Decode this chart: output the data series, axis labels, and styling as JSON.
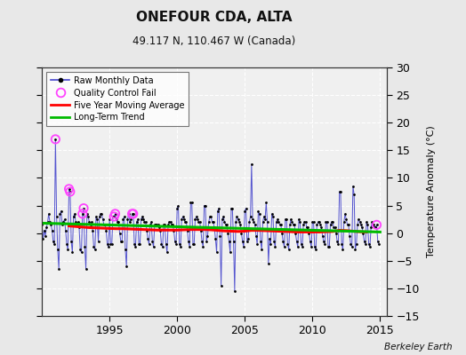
{
  "title": "ONEFOUR CDA, ALTA",
  "subtitle": "49.117 N, 110.467 W (Canada)",
  "ylabel": "Temperature Anomaly (°C)",
  "watermark": "Berkeley Earth",
  "xlim": [
    1990.0,
    2015.5
  ],
  "ylim": [
    -15,
    30
  ],
  "yticks": [
    -15,
    -10,
    -5,
    0,
    5,
    10,
    15,
    20,
    25,
    30
  ],
  "xticks": [
    1995,
    2000,
    2005,
    2010,
    2015
  ],
  "bg_color": "#e8e8e8",
  "plot_bg_color": "#f0f0f0",
  "grid_color": "#ffffff",
  "line_color": "#4444cc",
  "dot_color": "#000000",
  "ma_color": "#ff0000",
  "trend_color": "#00bb00",
  "qc_color": "#ff44ff",
  "raw_data": [
    [
      1990.0,
      1.5
    ],
    [
      1990.083,
      -1.0
    ],
    [
      1990.167,
      0.5
    ],
    [
      1990.25,
      -0.5
    ],
    [
      1990.333,
      1.0
    ],
    [
      1990.417,
      2.0
    ],
    [
      1990.5,
      3.5
    ],
    [
      1990.583,
      2.0
    ],
    [
      1990.667,
      1.5
    ],
    [
      1990.75,
      0.5
    ],
    [
      1990.833,
      -1.5
    ],
    [
      1990.917,
      -2.0
    ],
    [
      1991.0,
      17.0
    ],
    [
      1991.083,
      3.0
    ],
    [
      1991.167,
      -3.0
    ],
    [
      1991.25,
      -6.5
    ],
    [
      1991.333,
      3.5
    ],
    [
      1991.417,
      4.0
    ],
    [
      1991.5,
      1.5
    ],
    [
      1991.583,
      2.0
    ],
    [
      1991.667,
      2.5
    ],
    [
      1991.75,
      0.5
    ],
    [
      1991.833,
      -2.0
    ],
    [
      1991.917,
      -3.0
    ],
    [
      1992.0,
      8.0
    ],
    [
      1992.083,
      7.5
    ],
    [
      1992.167,
      -1.5
    ],
    [
      1992.25,
      -3.5
    ],
    [
      1992.333,
      3.0
    ],
    [
      1992.417,
      3.5
    ],
    [
      1992.5,
      2.0
    ],
    [
      1992.583,
      1.5
    ],
    [
      1992.667,
      2.0
    ],
    [
      1992.75,
      1.0
    ],
    [
      1992.833,
      -3.0
    ],
    [
      1992.917,
      -3.5
    ],
    [
      1993.0,
      3.5
    ],
    [
      1993.083,
      4.5
    ],
    [
      1993.167,
      -2.5
    ],
    [
      1993.25,
      -6.5
    ],
    [
      1993.333,
      3.5
    ],
    [
      1993.417,
      3.0
    ],
    [
      1993.5,
      2.0
    ],
    [
      1993.583,
      1.5
    ],
    [
      1993.667,
      2.0
    ],
    [
      1993.75,
      0.5
    ],
    [
      1993.833,
      -2.5
    ],
    [
      1993.917,
      -3.0
    ],
    [
      1994.0,
      3.0
    ],
    [
      1994.083,
      2.5
    ],
    [
      1994.167,
      -1.5
    ],
    [
      1994.25,
      3.0
    ],
    [
      1994.333,
      3.5
    ],
    [
      1994.417,
      3.5
    ],
    [
      1994.5,
      2.5
    ],
    [
      1994.583,
      1.5
    ],
    [
      1994.667,
      1.5
    ],
    [
      1994.75,
      0.5
    ],
    [
      1994.833,
      -2.0
    ],
    [
      1994.917,
      -2.5
    ],
    [
      1995.0,
      2.5
    ],
    [
      1995.083,
      -2.0
    ],
    [
      1995.167,
      -2.0
    ],
    [
      1995.25,
      3.0
    ],
    [
      1995.333,
      3.0
    ],
    [
      1995.417,
      3.5
    ],
    [
      1995.5,
      2.5
    ],
    [
      1995.583,
      2.0
    ],
    [
      1995.667,
      2.0
    ],
    [
      1995.75,
      0.0
    ],
    [
      1995.833,
      -1.5
    ],
    [
      1995.917,
      -1.5
    ],
    [
      1996.0,
      2.5
    ],
    [
      1996.083,
      3.0
    ],
    [
      1996.167,
      -3.0
    ],
    [
      1996.25,
      -6.0
    ],
    [
      1996.333,
      2.5
    ],
    [
      1996.417,
      3.5
    ],
    [
      1996.5,
      2.0
    ],
    [
      1996.583,
      2.5
    ],
    [
      1996.667,
      3.5
    ],
    [
      1996.75,
      3.5
    ],
    [
      1996.833,
      -2.0
    ],
    [
      1996.917,
      -2.5
    ],
    [
      1997.0,
      2.0
    ],
    [
      1997.083,
      2.5
    ],
    [
      1997.167,
      -2.0
    ],
    [
      1997.25,
      -2.0
    ],
    [
      1997.333,
      2.5
    ],
    [
      1997.417,
      3.0
    ],
    [
      1997.5,
      2.5
    ],
    [
      1997.583,
      2.0
    ],
    [
      1997.667,
      2.0
    ],
    [
      1997.75,
      0.5
    ],
    [
      1997.833,
      -1.0
    ],
    [
      1997.917,
      -2.0
    ],
    [
      1998.0,
      1.5
    ],
    [
      1998.083,
      2.0
    ],
    [
      1998.167,
      -1.5
    ],
    [
      1998.25,
      -2.5
    ],
    [
      1998.333,
      1.5
    ],
    [
      1998.417,
      1.5
    ],
    [
      1998.5,
      1.5
    ],
    [
      1998.583,
      1.5
    ],
    [
      1998.667,
      1.0
    ],
    [
      1998.75,
      0.5
    ],
    [
      1998.833,
      -2.0
    ],
    [
      1998.917,
      -2.5
    ],
    [
      1999.0,
      1.5
    ],
    [
      1999.083,
      1.5
    ],
    [
      1999.167,
      -2.0
    ],
    [
      1999.25,
      -3.5
    ],
    [
      1999.333,
      1.5
    ],
    [
      1999.417,
      2.0
    ],
    [
      1999.5,
      2.0
    ],
    [
      1999.583,
      1.5
    ],
    [
      1999.667,
      1.5
    ],
    [
      1999.75,
      0.5
    ],
    [
      1999.833,
      -1.5
    ],
    [
      1999.917,
      -2.0
    ],
    [
      2000.0,
      4.5
    ],
    [
      2000.083,
      5.0
    ],
    [
      2000.167,
      -2.0
    ],
    [
      2000.25,
      -2.5
    ],
    [
      2000.333,
      2.5
    ],
    [
      2000.417,
      3.0
    ],
    [
      2000.5,
      2.5
    ],
    [
      2000.583,
      2.0
    ],
    [
      2000.667,
      2.0
    ],
    [
      2000.75,
      0.5
    ],
    [
      2000.833,
      -1.5
    ],
    [
      2000.917,
      -2.5
    ],
    [
      2001.0,
      5.5
    ],
    [
      2001.083,
      5.5
    ],
    [
      2001.167,
      -2.0
    ],
    [
      2001.25,
      -2.0
    ],
    [
      2001.333,
      2.5
    ],
    [
      2001.417,
      3.0
    ],
    [
      2001.5,
      2.5
    ],
    [
      2001.583,
      2.0
    ],
    [
      2001.667,
      2.0
    ],
    [
      2001.75,
      0.5
    ],
    [
      2001.833,
      -1.5
    ],
    [
      2001.917,
      -2.5
    ],
    [
      2002.0,
      5.0
    ],
    [
      2002.083,
      5.0
    ],
    [
      2002.167,
      -1.5
    ],
    [
      2002.25,
      -0.5
    ],
    [
      2002.333,
      2.0
    ],
    [
      2002.417,
      3.0
    ],
    [
      2002.5,
      3.0
    ],
    [
      2002.583,
      2.0
    ],
    [
      2002.667,
      2.0
    ],
    [
      2002.75,
      1.0
    ],
    [
      2002.833,
      -1.0
    ],
    [
      2002.917,
      -3.5
    ],
    [
      2003.0,
      4.0
    ],
    [
      2003.083,
      4.5
    ],
    [
      2003.167,
      -0.5
    ],
    [
      2003.25,
      -9.5
    ],
    [
      2003.333,
      2.5
    ],
    [
      2003.417,
      3.0
    ],
    [
      2003.5,
      2.0
    ],
    [
      2003.583,
      1.5
    ],
    [
      2003.667,
      1.5
    ],
    [
      2003.75,
      0.0
    ],
    [
      2003.833,
      -1.5
    ],
    [
      2003.917,
      -3.5
    ],
    [
      2004.0,
      4.5
    ],
    [
      2004.083,
      4.5
    ],
    [
      2004.167,
      -1.5
    ],
    [
      2004.25,
      -10.5
    ],
    [
      2004.333,
      2.0
    ],
    [
      2004.417,
      3.0
    ],
    [
      2004.5,
      2.5
    ],
    [
      2004.583,
      2.0
    ],
    [
      2004.667,
      1.5
    ],
    [
      2004.75,
      0.0
    ],
    [
      2004.833,
      -1.5
    ],
    [
      2004.917,
      -2.5
    ],
    [
      2005.0,
      4.0
    ],
    [
      2005.083,
      4.5
    ],
    [
      2005.167,
      -1.5
    ],
    [
      2005.25,
      -1.0
    ],
    [
      2005.333,
      2.0
    ],
    [
      2005.417,
      3.0
    ],
    [
      2005.5,
      12.5
    ],
    [
      2005.583,
      2.5
    ],
    [
      2005.667,
      2.0
    ],
    [
      2005.75,
      1.5
    ],
    [
      2005.833,
      -0.5
    ],
    [
      2005.917,
      -2.0
    ],
    [
      2006.0,
      4.0
    ],
    [
      2006.083,
      3.5
    ],
    [
      2006.167,
      -1.5
    ],
    [
      2006.25,
      -3.0
    ],
    [
      2006.333,
      2.0
    ],
    [
      2006.417,
      3.0
    ],
    [
      2006.5,
      2.5
    ],
    [
      2006.583,
      5.5
    ],
    [
      2006.667,
      2.0
    ],
    [
      2006.75,
      -5.5
    ],
    [
      2006.833,
      -1.0
    ],
    [
      2006.917,
      -2.0
    ],
    [
      2007.0,
      3.5
    ],
    [
      2007.083,
      3.0
    ],
    [
      2007.167,
      -1.5
    ],
    [
      2007.25,
      -2.5
    ],
    [
      2007.333,
      2.0
    ],
    [
      2007.417,
      2.5
    ],
    [
      2007.5,
      2.0
    ],
    [
      2007.583,
      1.5
    ],
    [
      2007.667,
      1.5
    ],
    [
      2007.75,
      0.0
    ],
    [
      2007.833,
      -1.5
    ],
    [
      2007.917,
      -2.5
    ],
    [
      2008.0,
      2.5
    ],
    [
      2008.083,
      2.5
    ],
    [
      2008.167,
      -2.0
    ],
    [
      2008.25,
      -3.0
    ],
    [
      2008.333,
      1.5
    ],
    [
      2008.417,
      2.5
    ],
    [
      2008.5,
      2.0
    ],
    [
      2008.583,
      1.5
    ],
    [
      2008.667,
      1.5
    ],
    [
      2008.75,
      0.0
    ],
    [
      2008.833,
      -1.5
    ],
    [
      2008.917,
      -2.5
    ],
    [
      2009.0,
      2.5
    ],
    [
      2009.083,
      2.0
    ],
    [
      2009.167,
      -2.0
    ],
    [
      2009.25,
      -2.5
    ],
    [
      2009.333,
      1.5
    ],
    [
      2009.417,
      2.0
    ],
    [
      2009.5,
      2.0
    ],
    [
      2009.583,
      1.0
    ],
    [
      2009.667,
      1.0
    ],
    [
      2009.75,
      0.0
    ],
    [
      2009.833,
      -1.5
    ],
    [
      2009.917,
      -2.5
    ],
    [
      2010.0,
      2.0
    ],
    [
      2010.083,
      2.0
    ],
    [
      2010.167,
      -2.5
    ],
    [
      2010.25,
      -3.0
    ],
    [
      2010.333,
      1.5
    ],
    [
      2010.417,
      2.0
    ],
    [
      2010.5,
      2.0
    ],
    [
      2010.583,
      1.5
    ],
    [
      2010.667,
      1.0
    ],
    [
      2010.75,
      -0.5
    ],
    [
      2010.833,
      -1.5
    ],
    [
      2010.917,
      -2.0
    ],
    [
      2011.0,
      2.0
    ],
    [
      2011.083,
      2.0
    ],
    [
      2011.167,
      -2.5
    ],
    [
      2011.25,
      -2.5
    ],
    [
      2011.333,
      1.5
    ],
    [
      2011.417,
      2.0
    ],
    [
      2011.5,
      2.0
    ],
    [
      2011.583,
      1.0
    ],
    [
      2011.667,
      1.0
    ],
    [
      2011.75,
      0.0
    ],
    [
      2011.833,
      -1.5
    ],
    [
      2011.917,
      -2.0
    ],
    [
      2012.0,
      7.5
    ],
    [
      2012.083,
      7.5
    ],
    [
      2012.167,
      -2.0
    ],
    [
      2012.25,
      -3.0
    ],
    [
      2012.333,
      2.0
    ],
    [
      2012.417,
      3.5
    ],
    [
      2012.5,
      2.5
    ],
    [
      2012.583,
      1.5
    ],
    [
      2012.667,
      1.5
    ],
    [
      2012.75,
      -0.5
    ],
    [
      2012.833,
      -2.0
    ],
    [
      2012.917,
      -2.5
    ],
    [
      2013.0,
      8.5
    ],
    [
      2013.083,
      7.0
    ],
    [
      2013.167,
      -3.0
    ],
    [
      2013.25,
      -2.0
    ],
    [
      2013.333,
      1.5
    ],
    [
      2013.417,
      2.5
    ],
    [
      2013.5,
      2.0
    ],
    [
      2013.583,
      1.5
    ],
    [
      2013.667,
      1.0
    ],
    [
      2013.75,
      0.0
    ],
    [
      2013.833,
      -1.5
    ],
    [
      2013.917,
      -2.0
    ],
    [
      2014.0,
      2.0
    ],
    [
      2014.083,
      1.5
    ],
    [
      2014.167,
      -2.0
    ],
    [
      2014.25,
      -2.5
    ],
    [
      2014.333,
      1.0
    ],
    [
      2014.417,
      2.0
    ],
    [
      2014.5,
      1.5
    ],
    [
      2014.583,
      1.0
    ],
    [
      2014.667,
      1.0
    ],
    [
      2014.75,
      1.5
    ],
    [
      2014.833,
      -1.5
    ],
    [
      2014.917,
      -2.0
    ]
  ],
  "qc_fail_points": [
    [
      1991.0,
      17.0
    ],
    [
      1992.0,
      8.0
    ],
    [
      1992.083,
      7.5
    ],
    [
      1993.0,
      3.5
    ],
    [
      1993.083,
      4.5
    ],
    [
      1995.333,
      3.0
    ],
    [
      1995.417,
      3.5
    ],
    [
      1996.667,
      3.5
    ],
    [
      1996.75,
      3.5
    ],
    [
      2014.75,
      1.5
    ]
  ],
  "ma_data": [
    [
      1992.0,
      1.3
    ],
    [
      1992.5,
      1.2
    ],
    [
      1993.0,
      1.1
    ],
    [
      1993.5,
      1.0
    ],
    [
      1994.0,
      0.95
    ],
    [
      1994.5,
      0.9
    ],
    [
      1995.0,
      0.85
    ],
    [
      1995.5,
      0.8
    ],
    [
      1996.0,
      0.8
    ],
    [
      1996.5,
      0.75
    ],
    [
      1997.0,
      0.7
    ],
    [
      1997.5,
      0.65
    ],
    [
      1998.0,
      0.6
    ],
    [
      1998.5,
      0.55
    ],
    [
      1999.0,
      0.55
    ],
    [
      1999.5,
      0.55
    ],
    [
      2000.0,
      0.55
    ],
    [
      2000.5,
      0.6
    ],
    [
      2001.0,
      0.65
    ],
    [
      2001.5,
      0.65
    ],
    [
      2002.0,
      0.65
    ],
    [
      2002.5,
      0.6
    ],
    [
      2003.0,
      0.5
    ],
    [
      2003.5,
      0.4
    ],
    [
      2004.0,
      0.35
    ],
    [
      2004.5,
      0.3
    ],
    [
      2005.0,
      0.35
    ],
    [
      2005.5,
      0.5
    ],
    [
      2006.0,
      0.5
    ],
    [
      2006.5,
      0.45
    ],
    [
      2007.0,
      0.4
    ],
    [
      2007.5,
      0.35
    ],
    [
      2008.0,
      0.3
    ],
    [
      2008.5,
      0.25
    ],
    [
      2009.0,
      0.2
    ],
    [
      2009.5,
      0.2
    ],
    [
      2010.0,
      0.2
    ],
    [
      2010.5,
      0.2
    ],
    [
      2011.0,
      0.25
    ],
    [
      2011.5,
      0.3
    ],
    [
      2012.0,
      0.5
    ],
    [
      2012.5,
      0.45
    ],
    [
      2013.0,
      0.35
    ],
    [
      2013.5,
      0.25
    ],
    [
      2014.0,
      0.2
    ]
  ],
  "trend_x": [
    1990.0,
    2015.0
  ],
  "trend_y": [
    1.8,
    0.2
  ]
}
